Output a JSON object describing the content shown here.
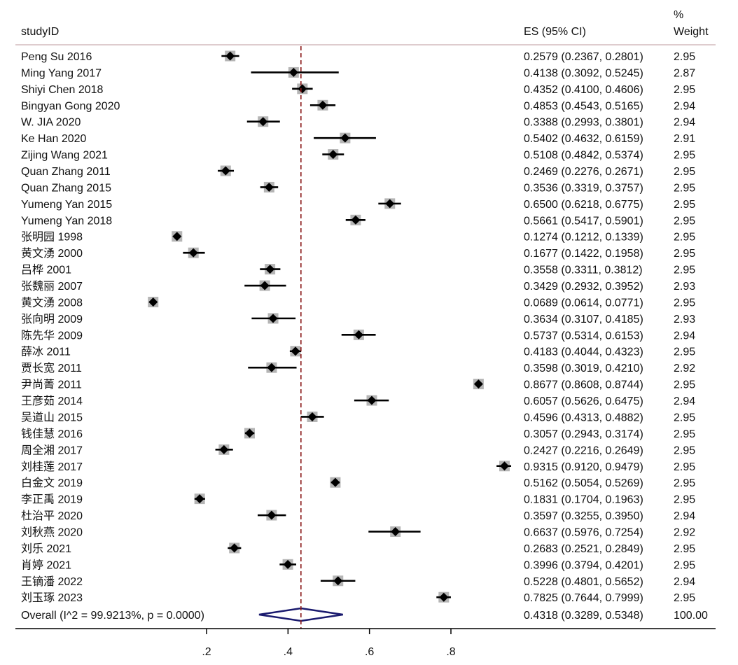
{
  "headers": {
    "study": "studyID",
    "es": "ES (95% CI)",
    "weight_line1": "%",
    "weight_line2": "Weight"
  },
  "overall": {
    "label": "Overall  (I^2 = 99.9213%, p = 0.0000)",
    "es_text": "0.4318 (0.3289, 0.5348)",
    "weight": "100.00"
  },
  "colors": {
    "marker": "#000000",
    "weight_box": "#b5b5b5",
    "ref_line": "#8b1a1a",
    "diamond": "#1a1a6e",
    "separator": "#c9aeb0"
  },
  "chart_data": {
    "type": "forest",
    "x_ticks": [
      0.2,
      0.4,
      0.6,
      0.8
    ],
    "x_tick_labels": [
      ".2",
      ".4",
      ".6",
      ".8"
    ],
    "overall": {
      "es": 0.4318,
      "lo": 0.3289,
      "hi": 0.5348,
      "weight": 100.0
    },
    "studies": [
      {
        "id": "Peng Su 2016",
        "es": 0.2579,
        "lo": 0.2367,
        "hi": 0.2801,
        "ci_text": "0.2579 (0.2367, 0.2801)",
        "weight": "2.95"
      },
      {
        "id": "Ming Yang 2017",
        "es": 0.4138,
        "lo": 0.3092,
        "hi": 0.5245,
        "ci_text": "0.4138 (0.3092, 0.5245)",
        "weight": "2.87"
      },
      {
        "id": "Shiyi Chen 2018",
        "es": 0.4352,
        "lo": 0.41,
        "hi": 0.4606,
        "ci_text": "0.4352 (0.4100, 0.4606)",
        "weight": "2.95"
      },
      {
        "id": "Bingyan Gong 2020",
        "es": 0.4853,
        "lo": 0.4543,
        "hi": 0.5165,
        "ci_text": "0.4853 (0.4543, 0.5165)",
        "weight": "2.94"
      },
      {
        "id": "W. JIA 2020",
        "es": 0.3388,
        "lo": 0.2993,
        "hi": 0.3801,
        "ci_text": "0.3388 (0.2993, 0.3801)",
        "weight": "2.94"
      },
      {
        "id": "Ke Han 2020",
        "es": 0.5402,
        "lo": 0.4632,
        "hi": 0.6159,
        "ci_text": "0.5402 (0.4632, 0.6159)",
        "weight": "2.91"
      },
      {
        "id": "Zijing Wang 2021",
        "es": 0.5108,
        "lo": 0.4842,
        "hi": 0.5374,
        "ci_text": "0.5108 (0.4842, 0.5374)",
        "weight": "2.95"
      },
      {
        "id": "Quan Zhang 2011",
        "es": 0.2469,
        "lo": 0.2276,
        "hi": 0.2671,
        "ci_text": "0.2469 (0.2276, 0.2671)",
        "weight": "2.95"
      },
      {
        "id": "Quan Zhang 2015",
        "es": 0.3536,
        "lo": 0.3319,
        "hi": 0.3757,
        "ci_text": "0.3536 (0.3319, 0.3757)",
        "weight": "2.95"
      },
      {
        "id": "Yumeng Yan 2015",
        "es": 0.65,
        "lo": 0.6218,
        "hi": 0.6775,
        "ci_text": "0.6500 (0.6218, 0.6775)",
        "weight": "2.95"
      },
      {
        "id": "Yumeng Yan 2018",
        "es": 0.5661,
        "lo": 0.5417,
        "hi": 0.5901,
        "ci_text": "0.5661 (0.5417, 0.5901)",
        "weight": "2.95"
      },
      {
        "id": "张明园 1998",
        "es": 0.1274,
        "lo": 0.1212,
        "hi": 0.1339,
        "ci_text": "0.1274 (0.1212, 0.1339)",
        "weight": "2.95"
      },
      {
        "id": "黄文湧 2000",
        "es": 0.1677,
        "lo": 0.1422,
        "hi": 0.1958,
        "ci_text": "0.1677 (0.1422, 0.1958)",
        "weight": "2.95"
      },
      {
        "id": "吕桦 2001",
        "es": 0.3558,
        "lo": 0.3311,
        "hi": 0.3812,
        "ci_text": "0.3558 (0.3311, 0.3812)",
        "weight": "2.95"
      },
      {
        "id": "张魏丽 2007",
        "es": 0.3429,
        "lo": 0.2932,
        "hi": 0.3952,
        "ci_text": "0.3429 (0.2932, 0.3952)",
        "weight": "2.93"
      },
      {
        "id": "黄文湧 2008",
        "es": 0.0689,
        "lo": 0.0614,
        "hi": 0.0771,
        "ci_text": "0.0689 (0.0614, 0.0771)",
        "weight": "2.95"
      },
      {
        "id": "张向明 2009",
        "es": 0.3634,
        "lo": 0.3107,
        "hi": 0.4185,
        "ci_text": "0.3634 (0.3107, 0.4185)",
        "weight": "2.93"
      },
      {
        "id": "陈先华 2009",
        "es": 0.5737,
        "lo": 0.5314,
        "hi": 0.6153,
        "ci_text": "0.5737 (0.5314, 0.6153)",
        "weight": "2.94"
      },
      {
        "id": "薛冰 2011",
        "es": 0.4183,
        "lo": 0.4044,
        "hi": 0.4323,
        "ci_text": "0.4183 (0.4044, 0.4323)",
        "weight": "2.95"
      },
      {
        "id": "贾长宽 2011",
        "es": 0.3598,
        "lo": 0.3019,
        "hi": 0.421,
        "ci_text": "0.3598 (0.3019, 0.4210)",
        "weight": "2.92"
      },
      {
        "id": "尹尚菁 2011",
        "es": 0.8677,
        "lo": 0.8608,
        "hi": 0.8744,
        "ci_text": "0.8677 (0.8608, 0.8744)",
        "weight": "2.95"
      },
      {
        "id": "王彦茹 2014",
        "es": 0.6057,
        "lo": 0.5626,
        "hi": 0.6475,
        "ci_text": "0.6057 (0.5626, 0.6475)",
        "weight": "2.94"
      },
      {
        "id": "吴道山 2015",
        "es": 0.4596,
        "lo": 0.4313,
        "hi": 0.4882,
        "ci_text": "0.4596 (0.4313, 0.4882)",
        "weight": "2.95"
      },
      {
        "id": "钱佳慧 2016",
        "es": 0.3057,
        "lo": 0.2943,
        "hi": 0.3174,
        "ci_text": "0.3057 (0.2943, 0.3174)",
        "weight": "2.95"
      },
      {
        "id": "周全湘 2017",
        "es": 0.2427,
        "lo": 0.2216,
        "hi": 0.2649,
        "ci_text": "0.2427 (0.2216, 0.2649)",
        "weight": "2.95"
      },
      {
        "id": "刘桂莲 2017",
        "es": 0.9315,
        "lo": 0.912,
        "hi": 0.9479,
        "ci_text": "0.9315 (0.9120, 0.9479)",
        "weight": "2.95"
      },
      {
        "id": "白金文 2019",
        "es": 0.5162,
        "lo": 0.5054,
        "hi": 0.5269,
        "ci_text": "0.5162 (0.5054, 0.5269)",
        "weight": "2.95"
      },
      {
        "id": "李正禹 2019",
        "es": 0.1831,
        "lo": 0.1704,
        "hi": 0.1963,
        "ci_text": "0.1831 (0.1704, 0.1963)",
        "weight": "2.95"
      },
      {
        "id": "杜治平 2020",
        "es": 0.3597,
        "lo": 0.3255,
        "hi": 0.395,
        "ci_text": "0.3597 (0.3255, 0.3950)",
        "weight": "2.94"
      },
      {
        "id": "刘秋燕 2020",
        "es": 0.6637,
        "lo": 0.5976,
        "hi": 0.7254,
        "ci_text": "0.6637 (0.5976, 0.7254)",
        "weight": "2.92"
      },
      {
        "id": "刘乐 2021",
        "es": 0.2683,
        "lo": 0.2521,
        "hi": 0.2849,
        "ci_text": "0.2683 (0.2521, 0.2849)",
        "weight": "2.95"
      },
      {
        "id": "肖婷 2021",
        "es": 0.3996,
        "lo": 0.3794,
        "hi": 0.4201,
        "ci_text": "0.3996 (0.3794, 0.4201)",
        "weight": "2.95"
      },
      {
        "id": "王镝潘 2022",
        "es": 0.5228,
        "lo": 0.4801,
        "hi": 0.5652,
        "ci_text": "0.5228 (0.4801, 0.5652)",
        "weight": "2.94"
      },
      {
        "id": "刘玉琢 2023",
        "es": 0.7825,
        "lo": 0.7644,
        "hi": 0.7999,
        "ci_text": "0.7825 (0.7644, 0.7999)",
        "weight": "2.95"
      }
    ]
  }
}
